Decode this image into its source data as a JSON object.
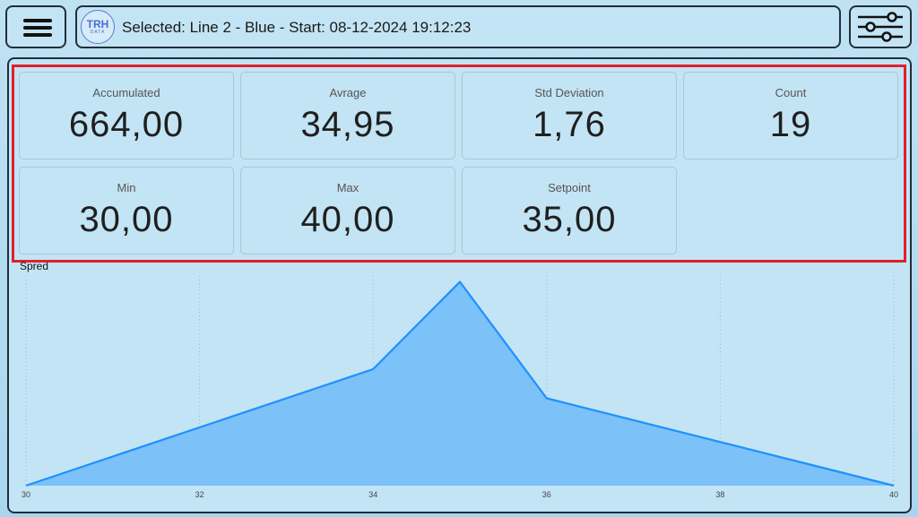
{
  "header": {
    "logo_text": "TRH",
    "logo_subtext": "DATA",
    "title": "Selected: Line 2 - Blue - Start: 08-12-2024 19:12:23"
  },
  "cards": [
    {
      "label": "Accumulated",
      "value": "664,00"
    },
    {
      "label": "Avrage",
      "value": "34,95"
    },
    {
      "label": "Std Deviation",
      "value": "1,76"
    },
    {
      "label": "Count",
      "value": "19"
    },
    {
      "label": "Min",
      "value": "30,00"
    },
    {
      "label": "Max",
      "value": "40,00"
    },
    {
      "label": "Setpoint",
      "value": "35,00"
    }
  ],
  "chart_data": {
    "type": "area",
    "title": "Spred",
    "x": [
      30,
      34,
      35,
      36,
      40
    ],
    "values": [
      1,
      5,
      8,
      4,
      1
    ],
    "xlim": [
      30,
      40
    ],
    "xticks": [
      30,
      32,
      34,
      36,
      38,
      40
    ],
    "ylim": [
      1,
      8.2
    ],
    "color": "#1e90ff",
    "fill": "#7cc1f7",
    "grid": true
  }
}
